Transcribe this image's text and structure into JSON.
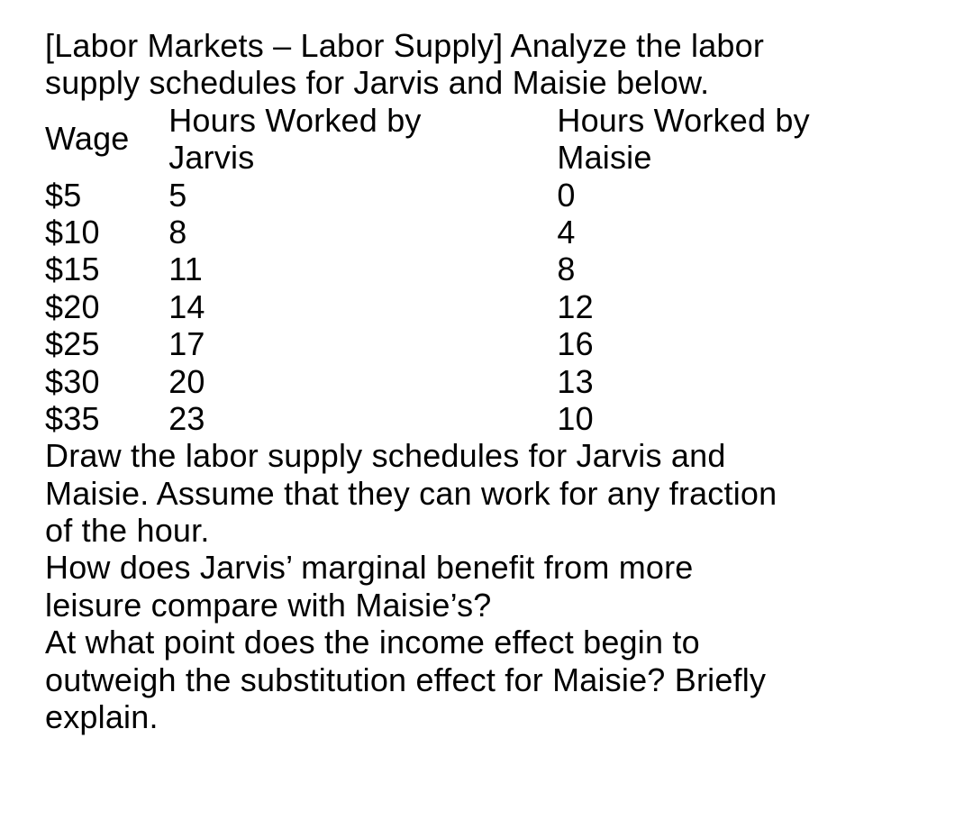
{
  "intro": {
    "line1": "[Labor Markets – Labor Supply] Analyze the labor",
    "line2": "supply schedules for Jarvis and Maisie below."
  },
  "table": {
    "type": "table",
    "columns": {
      "wage": {
        "label": "Wage",
        "width_pct": 14,
        "align": "left"
      },
      "jarvis": {
        "label1": "Hours Worked by",
        "label2": "Jarvis",
        "width_pct": 44,
        "align": "left"
      },
      "maisie": {
        "label1": "Hours Worked by",
        "label2": "Maisie",
        "width_pct": 42,
        "align": "left"
      }
    },
    "rows": [
      {
        "wage": "$5",
        "jarvis": "5",
        "maisie": "0"
      },
      {
        "wage": "$10",
        "jarvis": "8",
        "maisie": "4"
      },
      {
        "wage": "$15",
        "jarvis": "11",
        "maisie": "8"
      },
      {
        "wage": "$20",
        "jarvis": "14",
        "maisie": "12"
      },
      {
        "wage": "$25",
        "jarvis": "17",
        "maisie": "16"
      },
      {
        "wage": "$30",
        "jarvis": "20",
        "maisie": "13"
      },
      {
        "wage": "$35",
        "jarvis": "23",
        "maisie": "10"
      }
    ],
    "font_size_pt": 27,
    "text_color": "#000000",
    "background_color": "#ffffff"
  },
  "questions": {
    "q1_l1": "Draw the labor supply schedules for Jarvis and",
    "q1_l2": "Maisie. Assume that they can work for any fraction",
    "q1_l3": "of the hour.",
    "q2_l1": "How does Jarvis’ marginal benefit from more",
    "q2_l2": "leisure compare with Maisie’s?",
    "q3_l1": "At what point does the income effect begin to",
    "q3_l2": "outweigh the substitution effect for Maisie? Briefly",
    "q3_l3": "explain."
  }
}
